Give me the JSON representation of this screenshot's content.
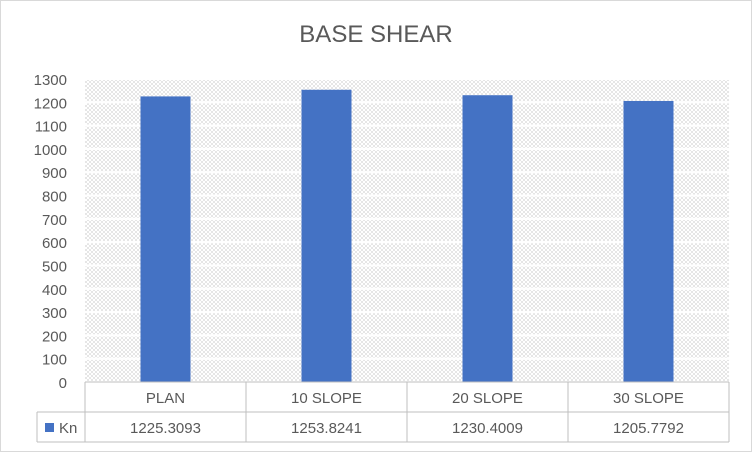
{
  "chart_data": {
    "type": "bar",
    "title": "BASE SHEAR",
    "xlabel": "",
    "ylabel": "",
    "categories": [
      "PLAN",
      "10 SLOPE",
      "20 SLOPE",
      "30 SLOPE"
    ],
    "series": [
      {
        "name": "Kn",
        "values": [
          1225.3093,
          1253.8241,
          1230.4009,
          1205.7792
        ],
        "value_labels": [
          "1225.3093",
          "1253.8241",
          "1230.4009",
          "1205.7792"
        ],
        "color": "#4472c4"
      }
    ],
    "ylim": [
      0,
      1300
    ],
    "yticks": [
      0,
      100,
      200,
      300,
      400,
      500,
      600,
      700,
      800,
      900,
      1000,
      1100,
      1200,
      1300
    ],
    "grid": true,
    "legend": "data-table",
    "data_table": true
  }
}
